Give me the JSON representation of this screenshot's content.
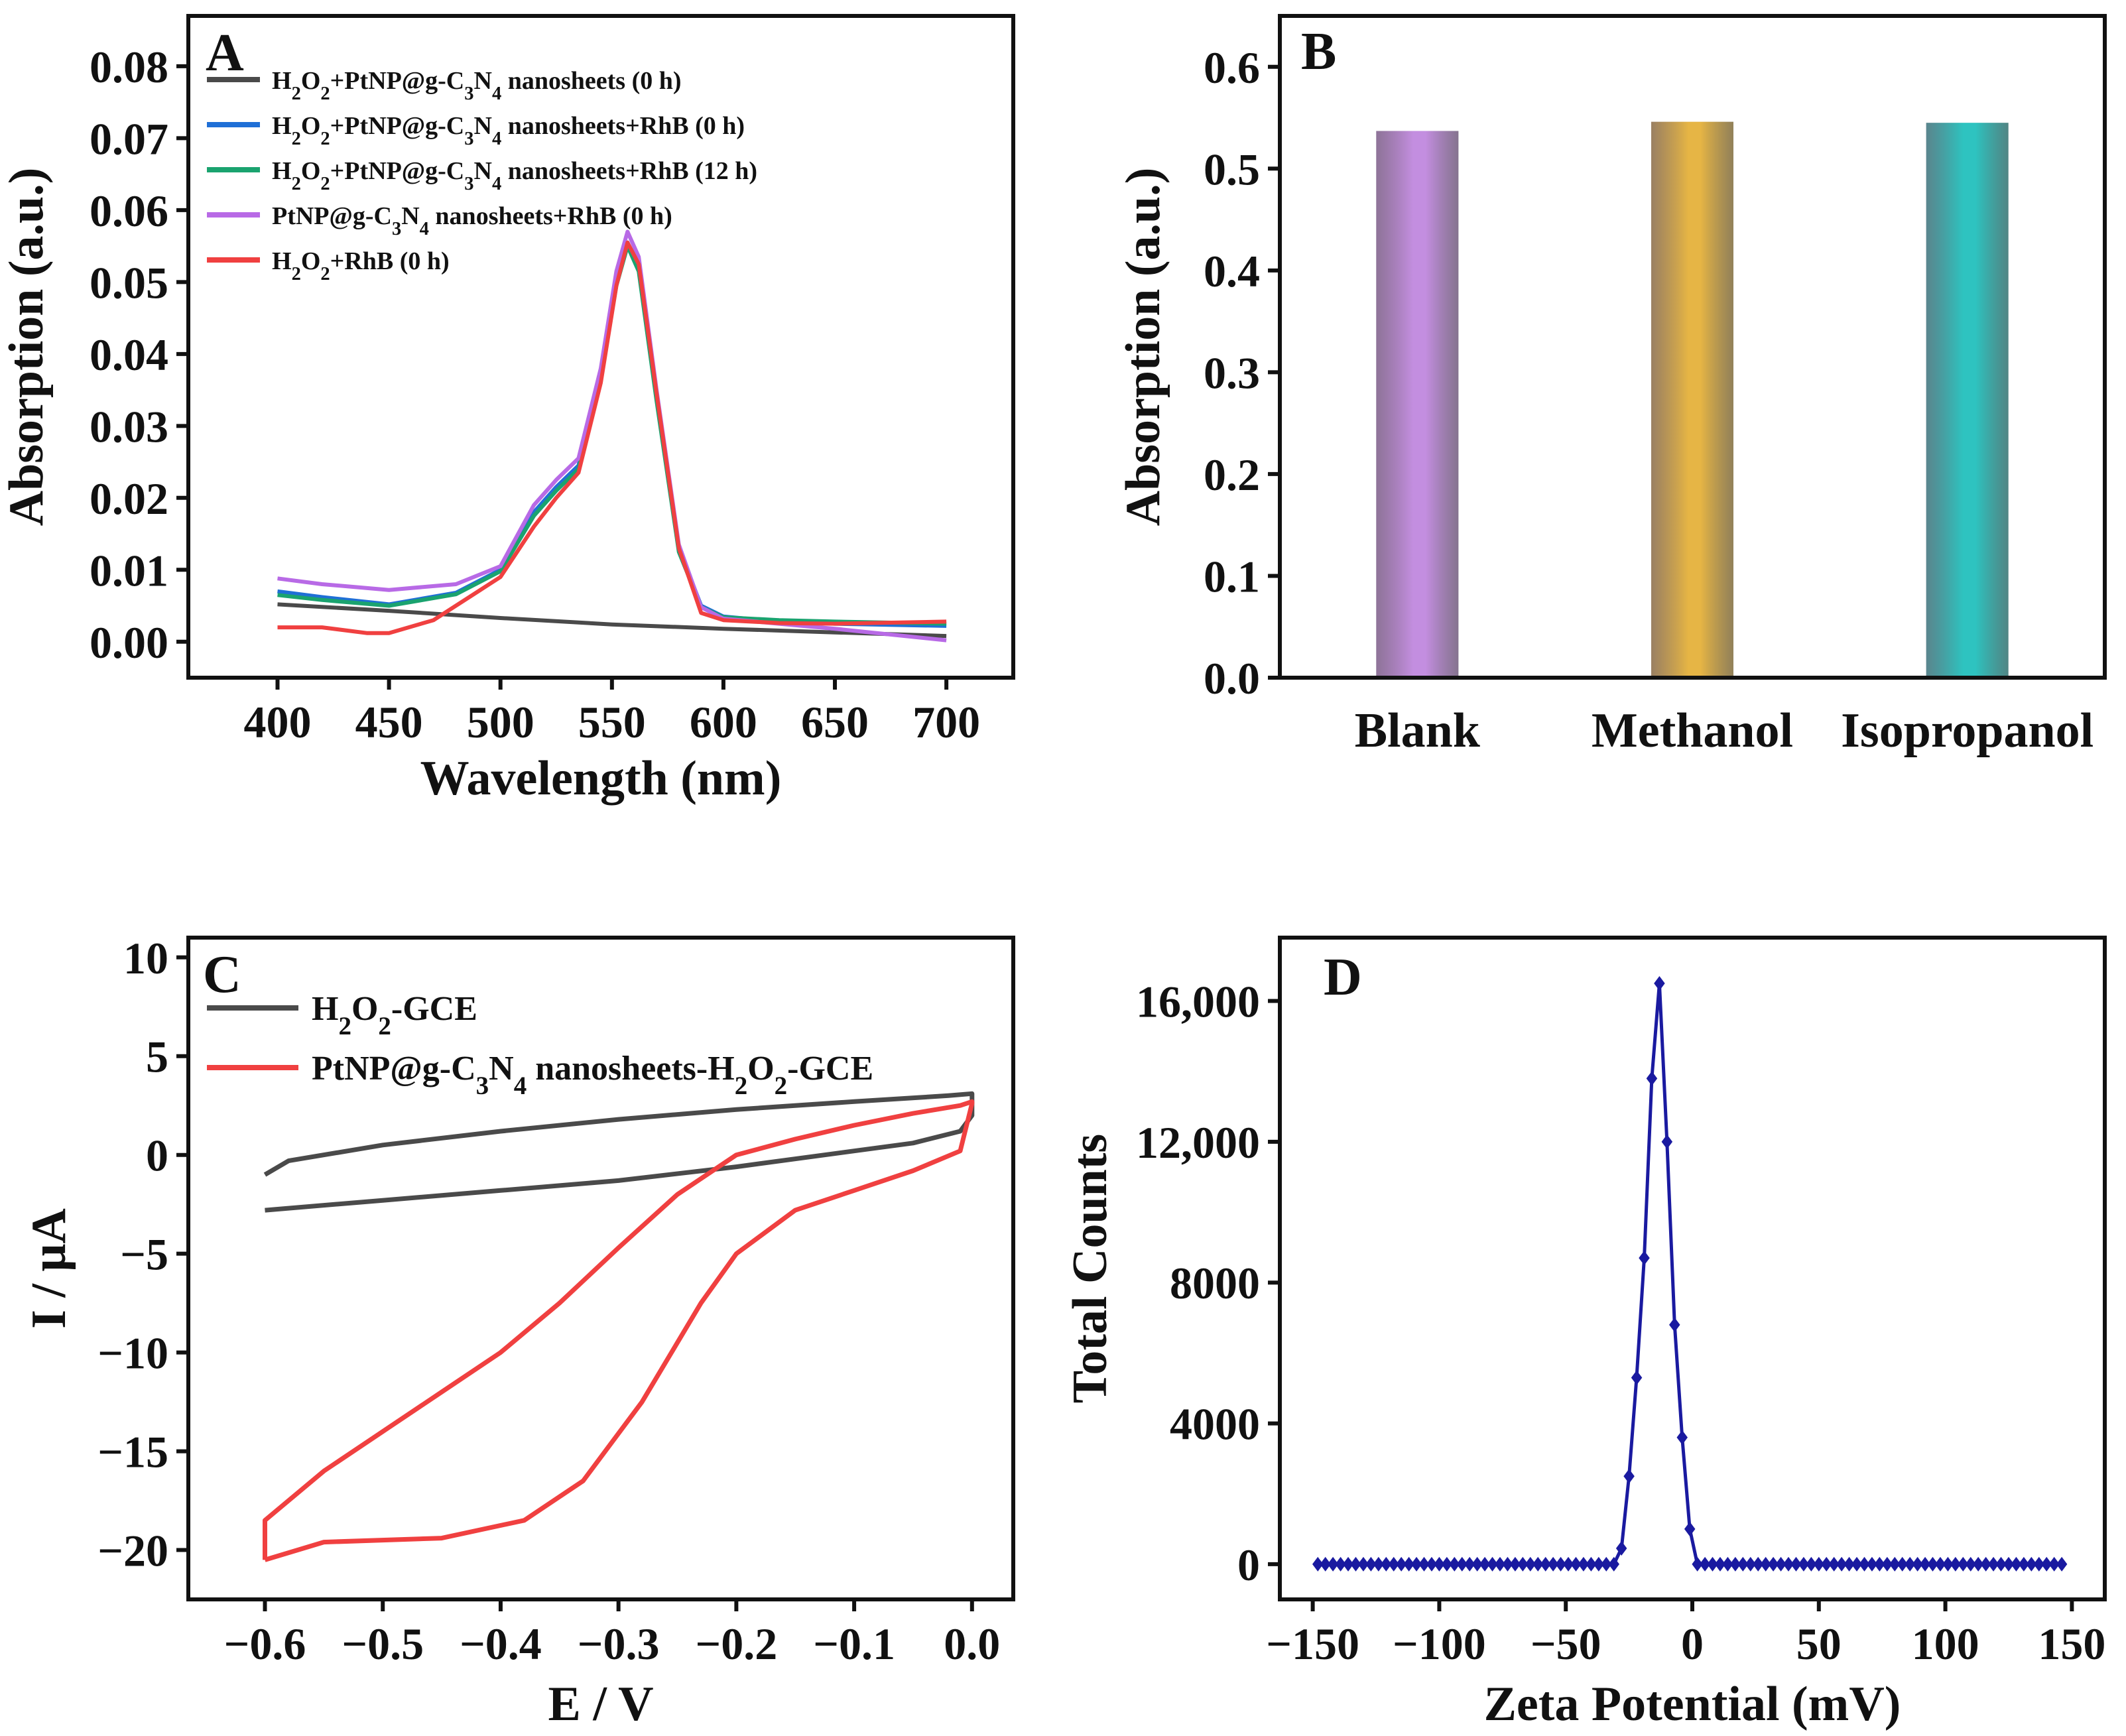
{
  "chart_data": [
    {
      "id": "A",
      "type": "line",
      "panel_label": "A",
      "xlabel": "Wavelength (nm)",
      "ylabel": "Absorption (a.u.)",
      "xlim": [
        360,
        730
      ],
      "ylim": [
        -0.005,
        0.087
      ],
      "xticks": [
        400,
        450,
        500,
        550,
        600,
        650,
        700
      ],
      "xtick_labels": [
        "400",
        "450",
        "500",
        "550",
        "600",
        "650",
        "700"
      ],
      "yticks": [
        0.0,
        0.01,
        0.02,
        0.03,
        0.04,
        0.05,
        0.06,
        0.07,
        0.08
      ],
      "ytick_labels": [
        "0.00",
        "0.01",
        "0.02",
        "0.03",
        "0.04",
        "0.05",
        "0.06",
        "0.07",
        "0.08"
      ],
      "legend_position": "top-left",
      "series": [
        {
          "name": "H2O2+PtNP@g-C3N4 nanosheets (0 h)",
          "legend_label": "H₂O₂+PtNP@g-C₃N₄ nanosheets (0 h)",
          "color": "#4a4a4a",
          "x": [
            400,
            450,
            500,
            550,
            600,
            650,
            700
          ],
          "y": [
            0.0052,
            0.0043,
            0.0033,
            0.0024,
            0.0018,
            0.0013,
            0.0008
          ]
        },
        {
          "name": "H2O2+PtNP@g-C3N4 nanosheets+RhB (0 h)",
          "legend_label": "H₂O₂+PtNP@g-C₃N₄ nanosheets+RhB (0 h)",
          "color": "#1f6fd6",
          "x": [
            400,
            420,
            450,
            480,
            500,
            515,
            525,
            535,
            545,
            552,
            557,
            562,
            570,
            580,
            590,
            600,
            625,
            650,
            700
          ],
          "y": [
            0.007,
            0.0062,
            0.0052,
            0.0068,
            0.01,
            0.018,
            0.0215,
            0.0245,
            0.037,
            0.05,
            0.0555,
            0.052,
            0.034,
            0.013,
            0.005,
            0.0035,
            0.0028,
            0.0025,
            0.0022
          ]
        },
        {
          "name": "H2O2+PtNP@g-C3N4 nanosheets+RhB (12 h)",
          "legend_label": "H₂O₂+PtNP@g-C₃N₄ nanosheets+RhB (12 h)",
          "color": "#1aa36f",
          "x": [
            400,
            420,
            450,
            480,
            500,
            515,
            525,
            535,
            545,
            552,
            557,
            562,
            570,
            580,
            590,
            600,
            625,
            650,
            700
          ],
          "y": [
            0.0065,
            0.0058,
            0.005,
            0.0066,
            0.0098,
            0.0175,
            0.021,
            0.024,
            0.0365,
            0.0495,
            0.055,
            0.0515,
            0.0335,
            0.0125,
            0.0048,
            0.0034,
            0.003,
            0.0028,
            0.0025
          ]
        },
        {
          "name": "PtNP@g-C3N4 nanosheets+RhB (0 h)",
          "legend_label": "PtNP@g-C₃N₄ nanosheets+RhB (0 h)",
          "color": "#b86ae6",
          "x": [
            400,
            420,
            450,
            480,
            500,
            515,
            525,
            535,
            545,
            552,
            557,
            562,
            570,
            580,
            590,
            600,
            625,
            650,
            700
          ],
          "y": [
            0.0088,
            0.008,
            0.0072,
            0.008,
            0.0105,
            0.019,
            0.0225,
            0.0255,
            0.038,
            0.0515,
            0.057,
            0.0535,
            0.035,
            0.0135,
            0.0048,
            0.0032,
            0.0025,
            0.0018,
            0.0002
          ]
        },
        {
          "name": "H2O2+RhB (0 h)",
          "legend_label": "H₂O₂+RhB (0 h)",
          "color": "#f04040",
          "x": [
            400,
            420,
            440,
            450,
            470,
            490,
            500,
            515,
            525,
            535,
            545,
            552,
            557,
            562,
            570,
            580,
            590,
            600,
            625,
            650,
            700
          ],
          "y": [
            0.002,
            0.002,
            0.0012,
            0.0012,
            0.003,
            0.007,
            0.009,
            0.016,
            0.02,
            0.0235,
            0.036,
            0.0495,
            0.0555,
            0.0525,
            0.0345,
            0.013,
            0.004,
            0.003,
            0.0026,
            0.0025,
            0.0028
          ]
        }
      ]
    },
    {
      "id": "B",
      "type": "bar",
      "panel_label": "B",
      "ylabel": "Absorption (a.u.)",
      "ylim": [
        0,
        0.65
      ],
      "yticks": [
        0.0,
        0.1,
        0.2,
        0.3,
        0.4,
        0.5,
        0.6
      ],
      "ytick_labels": [
        "0.0",
        "0.1",
        "0.2",
        "0.3",
        "0.4",
        "0.5",
        "0.6"
      ],
      "categories": [
        "Blank",
        "Methanol",
        "Isopropanol"
      ],
      "values": [
        0.537,
        0.546,
        0.545
      ],
      "colors": [
        "#c48ee0",
        "#e6b545",
        "#2ec4c0"
      ]
    },
    {
      "id": "C",
      "type": "line",
      "panel_label": "C",
      "xlabel": "E / V",
      "ylabel": "I / μA",
      "xlim": [
        -0.665,
        0.035
      ],
      "ylim": [
        -22.5,
        11
      ],
      "xticks": [
        -0.6,
        -0.5,
        -0.4,
        -0.3,
        -0.2,
        -0.1,
        0.0
      ],
      "xtick_labels": [
        "−0.6",
        "−0.5",
        "−0.4",
        "−0.3",
        "−0.2",
        "−0.1",
        "0.0"
      ],
      "yticks": [
        -20,
        -15,
        -10,
        -5,
        0,
        5,
        10
      ],
      "ytick_labels": [
        "−20",
        "−15",
        "−10",
        "−5",
        "0",
        "5",
        "10"
      ],
      "legend_position": "top-left",
      "series": [
        {
          "name": "H2O2-GCE",
          "legend_label": "H₂O₂-GCE",
          "color": "#4a4a4a",
          "x": [
            -0.6,
            -0.58,
            -0.5,
            -0.4,
            -0.3,
            -0.2,
            -0.1,
            -0.02,
            0.0,
            0.0,
            -0.01,
            -0.05,
            -0.1,
            -0.2,
            -0.3,
            -0.4,
            -0.5,
            -0.6
          ],
          "y": [
            -1.0,
            -0.3,
            0.5,
            1.2,
            1.8,
            2.3,
            2.7,
            3.0,
            3.1,
            2.0,
            1.2,
            0.6,
            0.2,
            -0.6,
            -1.3,
            -1.8,
            -2.3,
            -2.8
          ]
        },
        {
          "name": "PtNP@g-C3N4 nanosheets-H2O2-GCE",
          "legend_label": "PtNP@g-C₃N₄ nanosheets-H₂O₂-GCE",
          "color": "#f04040",
          "x": [
            -0.6,
            -0.55,
            -0.45,
            -0.38,
            -0.33,
            -0.28,
            -0.23,
            -0.2,
            -0.15,
            -0.1,
            -0.05,
            -0.01,
            0.0,
            0.0,
            -0.01,
            -0.05,
            -0.1,
            -0.15,
            -0.2,
            -0.25,
            -0.3,
            -0.35,
            -0.4,
            -0.45,
            -0.5,
            -0.55,
            -0.6,
            -0.6
          ],
          "y": [
            -20.5,
            -19.6,
            -19.4,
            -18.5,
            -16.5,
            -12.5,
            -7.5,
            -5.0,
            -2.8,
            -1.8,
            -0.8,
            0.2,
            2.6,
            2.7,
            2.5,
            2.1,
            1.5,
            0.8,
            0.0,
            -2.0,
            -4.7,
            -7.5,
            -10.0,
            -12.0,
            -14.0,
            -16.0,
            -18.5,
            -20.5
          ]
        }
      ]
    },
    {
      "id": "D",
      "type": "line",
      "panel_label": "D",
      "xlabel": "Zeta Potential (mV)",
      "ylabel": "Total Counts",
      "xlim": [
        -163,
        163
      ],
      "ylim": [
        -1000,
        17800
      ],
      "xticks": [
        -150,
        -100,
        -50,
        0,
        50,
        100,
        150
      ],
      "xtick_labels": [
        "−150",
        "−100",
        "−50",
        "0",
        "50",
        "100",
        "150"
      ],
      "yticks": [
        0,
        4000,
        8000,
        12000,
        16000
      ],
      "ytick_labels": [
        "0",
        "4000",
        "8000",
        "12,000",
        "16,000"
      ],
      "series": [
        {
          "name": "Total Counts",
          "color": "#1a1aa0",
          "peak_x": [
            -28,
            -25,
            -22,
            -19,
            -16,
            -13,
            -10,
            -7,
            -4,
            -1,
            2
          ],
          "peak_y": [
            450,
            2500,
            5300,
            8700,
            13800,
            16500,
            12000,
            6800,
            3600,
            1000,
            0
          ],
          "flat_left_range": [
            -148,
            -31
          ],
          "flat_right_range": [
            5,
            146
          ],
          "step": 3
        }
      ]
    }
  ]
}
